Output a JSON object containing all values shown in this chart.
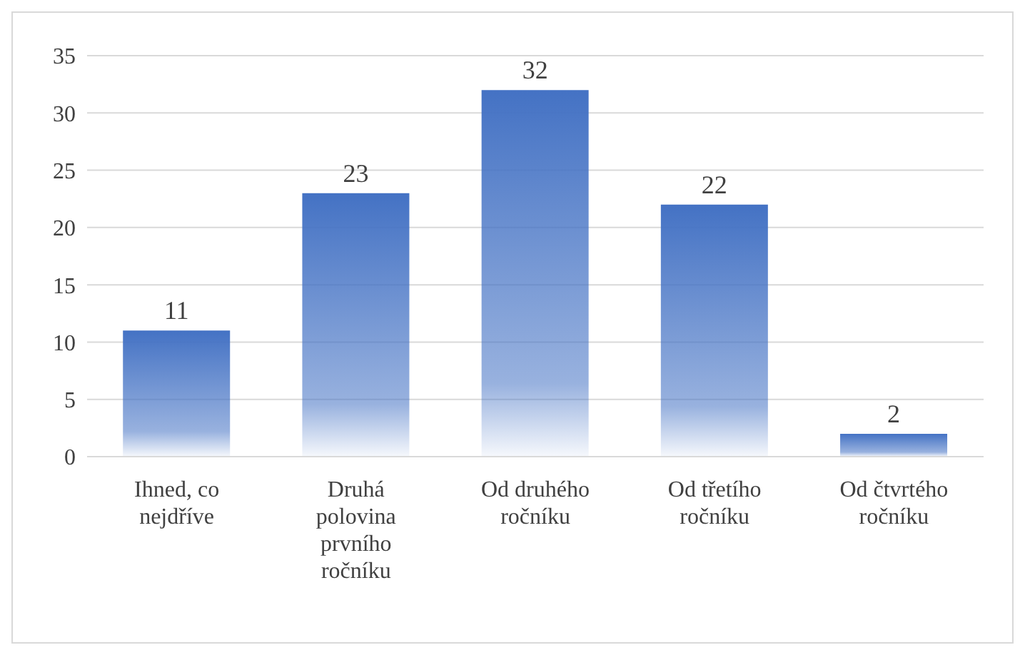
{
  "chart_data": {
    "type": "bar",
    "categories": [
      "Ihned, co nejdříve",
      "Druhá polovina prvního ročníku",
      "Od druhého ročníku",
      "Od třetího ročníku",
      "Od čtvrtého ročníku"
    ],
    "values": [
      11,
      23,
      32,
      22,
      2
    ],
    "color": "#4472c4",
    "ylim": [
      0,
      35
    ],
    "yticks": [
      0,
      5,
      10,
      15,
      20,
      25,
      30,
      35
    ],
    "grid": "y",
    "data_labels": true,
    "legend": false
  }
}
